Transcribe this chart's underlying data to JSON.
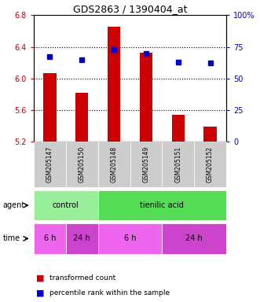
{
  "title": "GDS2863 / 1390404_at",
  "samples": [
    "GSM205147",
    "GSM205150",
    "GSM205148",
    "GSM205149",
    "GSM205151",
    "GSM205152"
  ],
  "bar_values": [
    6.07,
    5.82,
    6.65,
    6.33,
    5.54,
    5.39
  ],
  "bar_bottom": 5.2,
  "percentile_values": [
    67,
    65,
    73,
    70,
    63,
    62
  ],
  "ylim_left": [
    5.2,
    6.8
  ],
  "ylim_right": [
    0,
    100
  ],
  "yticks_left": [
    5.2,
    5.6,
    6.0,
    6.4,
    6.8
  ],
  "yticks_right": [
    0,
    25,
    50,
    75,
    100
  ],
  "ytick_labels_right": [
    "0",
    "25",
    "50",
    "75",
    "100%"
  ],
  "bar_color": "#cc0000",
  "dot_color": "#0000cc",
  "agent_defs": [
    {
      "text": "control",
      "start": 0,
      "end": 2,
      "color": "#99ee99"
    },
    {
      "text": "tienilic acid",
      "start": 2,
      "end": 6,
      "color": "#55dd55"
    }
  ],
  "time_defs": [
    {
      "text": "6 h",
      "start": 0,
      "end": 1,
      "color": "#ee66ee"
    },
    {
      "text": "24 h",
      "start": 1,
      "end": 2,
      "color": "#cc44cc"
    },
    {
      "text": "6 h",
      "start": 2,
      "end": 4,
      "color": "#ee66ee"
    },
    {
      "text": "24 h",
      "start": 4,
      "end": 6,
      "color": "#cc44cc"
    }
  ],
  "legend_bar_label": "transformed count",
  "legend_dot_label": "percentile rank within the sample",
  "sample_box_color": "#cccccc",
  "grid_yticks": [
    5.6,
    6.0,
    6.4
  ]
}
